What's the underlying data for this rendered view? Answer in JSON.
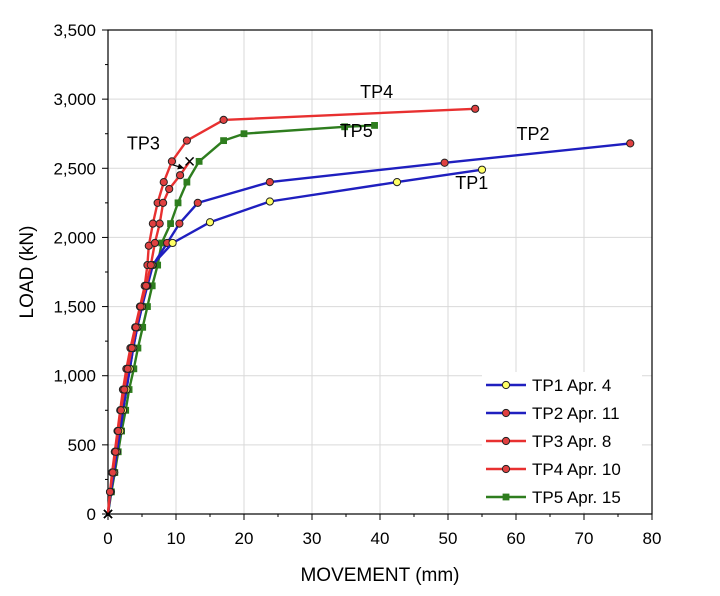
{
  "chart_data": {
    "type": "line",
    "xlabel": "MOVEMENT  (mm)",
    "ylabel": "LOAD  (kN)",
    "xlim": [
      0,
      80
    ],
    "ylim": [
      0,
      3500
    ],
    "xticks": [
      "0",
      "10",
      "20",
      "30",
      "40",
      "50",
      "60",
      "70",
      "80"
    ],
    "yticks": [
      "0",
      "500",
      "1,000",
      "1,500",
      "2,000",
      "2,500",
      "3,000",
      "3,500"
    ],
    "grid": true,
    "legend_position": "bottom-right",
    "series": [
      {
        "name": "TP1 Apr. 4",
        "color": "#1f1fbf",
        "marker": "circle",
        "marker_fill": "#ffff66",
        "points": [
          [
            0,
            0
          ],
          [
            0.4,
            160
          ],
          [
            0.9,
            300
          ],
          [
            1.3,
            450
          ],
          [
            1.8,
            600
          ],
          [
            2.2,
            750
          ],
          [
            2.7,
            900
          ],
          [
            3.2,
            1050
          ],
          [
            3.7,
            1200
          ],
          [
            4.3,
            1350
          ],
          [
            5.0,
            1500
          ],
          [
            5.7,
            1650
          ],
          [
            6.5,
            1800
          ],
          [
            9.5,
            1960
          ],
          [
            15,
            2110
          ],
          [
            23.8,
            2260
          ],
          [
            42.5,
            2400
          ],
          [
            55,
            2490
          ]
        ]
      },
      {
        "name": "TP2 Apr. 11",
        "color": "#1f1fbf",
        "marker": "circle",
        "marker_fill": "#e04040",
        "points": [
          [
            0,
            0
          ],
          [
            0.4,
            160
          ],
          [
            0.9,
            300
          ],
          [
            1.3,
            450
          ],
          [
            1.8,
            600
          ],
          [
            2.2,
            750
          ],
          [
            2.7,
            900
          ],
          [
            3.2,
            1050
          ],
          [
            3.7,
            1200
          ],
          [
            4.3,
            1350
          ],
          [
            5.0,
            1500
          ],
          [
            5.8,
            1650
          ],
          [
            6.6,
            1800
          ],
          [
            8.7,
            1960
          ],
          [
            10.5,
            2100
          ],
          [
            13.2,
            2250
          ],
          [
            23.8,
            2400
          ],
          [
            49.5,
            2540
          ],
          [
            76.8,
            2680
          ]
        ]
      },
      {
        "name": "TP3 Apr. 8",
        "color": "#e83030",
        "marker": "circle",
        "marker_fill": "#e04040",
        "end_marker": "x",
        "points": [
          [
            0,
            0
          ],
          [
            0.3,
            160
          ],
          [
            0.7,
            300
          ],
          [
            1.1,
            450
          ],
          [
            1.5,
            600
          ],
          [
            1.9,
            750
          ],
          [
            2.4,
            900
          ],
          [
            2.9,
            1050
          ],
          [
            3.5,
            1200
          ],
          [
            4.1,
            1350
          ],
          [
            4.8,
            1500
          ],
          [
            5.6,
            1650
          ],
          [
            6.3,
            1800
          ],
          [
            6.9,
            1960
          ],
          [
            7.6,
            2100
          ],
          [
            8.1,
            2250
          ],
          [
            9.0,
            2350
          ],
          [
            10.6,
            2450
          ],
          [
            12.0,
            2550
          ]
        ]
      },
      {
        "name": "TP4 Apr. 10",
        "color": "#e83030",
        "marker": "circle",
        "marker_fill": "#e04040",
        "points": [
          [
            0,
            0
          ],
          [
            0.3,
            160
          ],
          [
            0.6,
            300
          ],
          [
            1.0,
            450
          ],
          [
            1.4,
            600
          ],
          [
            1.8,
            750
          ],
          [
            2.2,
            900
          ],
          [
            2.7,
            1050
          ],
          [
            3.3,
            1200
          ],
          [
            4.0,
            1350
          ],
          [
            4.7,
            1500
          ],
          [
            5.4,
            1650
          ],
          [
            5.8,
            1800
          ],
          [
            6.0,
            1940
          ],
          [
            6.6,
            2100
          ],
          [
            7.3,
            2250
          ],
          [
            8.2,
            2400
          ],
          [
            9.4,
            2550
          ],
          [
            11.6,
            2700
          ],
          [
            17,
            2850
          ],
          [
            54,
            2930
          ]
        ]
      },
      {
        "name": "TP5 Apr. 15",
        "color": "#2e7d1e",
        "marker": "square",
        "marker_fill": "#e04040",
        "points": [
          [
            0,
            0
          ],
          [
            0.5,
            160
          ],
          [
            1.0,
            300
          ],
          [
            1.5,
            450
          ],
          [
            2.0,
            600
          ],
          [
            2.6,
            750
          ],
          [
            3.1,
            900
          ],
          [
            3.8,
            1050
          ],
          [
            4.4,
            1200
          ],
          [
            5.1,
            1350
          ],
          [
            5.8,
            1500
          ],
          [
            6.5,
            1650
          ],
          [
            7.3,
            1800
          ],
          [
            7.9,
            1960
          ],
          [
            9.2,
            2100
          ],
          [
            10.3,
            2250
          ],
          [
            11.6,
            2400
          ],
          [
            13.4,
            2550
          ],
          [
            17,
            2700
          ],
          [
            20,
            2750
          ],
          [
            34.8,
            2800
          ],
          [
            39.2,
            2810
          ]
        ]
      }
    ],
    "annotations": [
      {
        "text": "TP4",
        "x": 39.5,
        "y": 3010
      },
      {
        "text": "TP5",
        "x": 36.5,
        "y": 2725
      },
      {
        "text": "TP2",
        "x": 62.5,
        "y": 2705
      },
      {
        "text": "TP1",
        "x": 53.5,
        "y": 2350
      },
      {
        "text": "TP3",
        "x": 5.2,
        "y": 2635
      }
    ],
    "arrow": {
      "from": [
        9.5,
        2525
      ],
      "to": [
        11.2,
        2500
      ]
    }
  }
}
